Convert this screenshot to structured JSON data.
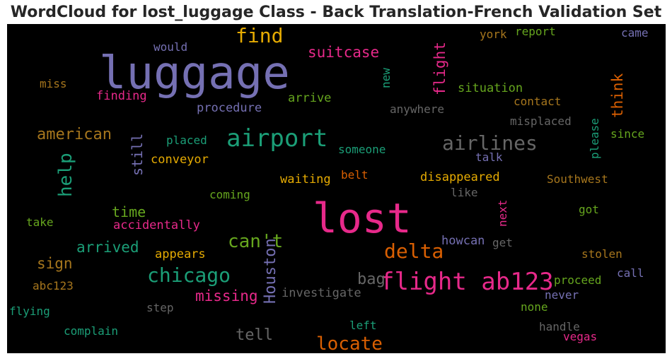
{
  "chart_data": {
    "type": "wordcloud",
    "title": "WordCloud for lost_luggage Class - Back Translation-French Validation Set",
    "background": "#000000",
    "words": [
      {
        "text": "luggage",
        "color": "#7570b3",
        "vertical": false
      },
      {
        "text": "lost",
        "color": "#e7298a",
        "vertical": false
      },
      {
        "text": "flight ab123",
        "color": "#e7298a",
        "vertical": false
      },
      {
        "text": "airport",
        "color": "#1b9e77",
        "vertical": false
      },
      {
        "text": "airlines",
        "color": "#666666",
        "vertical": false
      },
      {
        "text": "find",
        "color": "#e6ab02",
        "vertical": false
      },
      {
        "text": "delta",
        "color": "#d95f02",
        "vertical": false
      },
      {
        "text": "chicago",
        "color": "#1b9e77",
        "vertical": false
      },
      {
        "text": "can't",
        "color": "#66a61e",
        "vertical": false
      },
      {
        "text": "locate",
        "color": "#d95f02",
        "vertical": false
      },
      {
        "text": "help",
        "color": "#1b9e77",
        "vertical": true
      },
      {
        "text": "Houston",
        "color": "#7570b3",
        "vertical": true
      },
      {
        "text": "suitcase",
        "color": "#e7298a",
        "vertical": false
      },
      {
        "text": "flight",
        "color": "#e7298a",
        "vertical": true
      },
      {
        "text": "think",
        "color": "#d95f02",
        "vertical": true
      },
      {
        "text": "american",
        "color": "#a6761d",
        "vertical": false
      },
      {
        "text": "missing",
        "color": "#e7298a",
        "vertical": false
      },
      {
        "text": "bag",
        "color": "#666666",
        "vertical": false
      },
      {
        "text": "arrived",
        "color": "#1b9e77",
        "vertical": false
      },
      {
        "text": "time",
        "color": "#66a61e",
        "vertical": false
      },
      {
        "text": "sign",
        "color": "#a6761d",
        "vertical": false
      },
      {
        "text": "tell",
        "color": "#666666",
        "vertical": false
      },
      {
        "text": "still",
        "color": "#7570b3",
        "vertical": true
      },
      {
        "text": "situation",
        "color": "#66a61e",
        "vertical": false
      },
      {
        "text": "report",
        "color": "#66a61e",
        "vertical": false
      },
      {
        "text": "york",
        "color": "#a6761d",
        "vertical": false
      },
      {
        "text": "came",
        "color": "#7570b3",
        "vertical": false
      },
      {
        "text": "would",
        "color": "#7570b3",
        "vertical": false
      },
      {
        "text": "miss",
        "color": "#a6761d",
        "vertical": false
      },
      {
        "text": "finding",
        "color": "#e7298a",
        "vertical": false
      },
      {
        "text": "procedure",
        "color": "#7570b3",
        "vertical": false
      },
      {
        "text": "arrive",
        "color": "#66a61e",
        "vertical": false
      },
      {
        "text": "new",
        "color": "#1b9e77",
        "vertical": true
      },
      {
        "text": "anywhere",
        "color": "#666666",
        "vertical": false
      },
      {
        "text": "contact",
        "color": "#a6761d",
        "vertical": false
      },
      {
        "text": "misplaced",
        "color": "#666666",
        "vertical": false
      },
      {
        "text": "please",
        "color": "#1b9e77",
        "vertical": true
      },
      {
        "text": "since",
        "color": "#66a61e",
        "vertical": false
      },
      {
        "text": "placed",
        "color": "#1b9e77",
        "vertical": false
      },
      {
        "text": "someone",
        "color": "#1b9e77",
        "vertical": false
      },
      {
        "text": "talk",
        "color": "#7570b3",
        "vertical": false
      },
      {
        "text": "conveyor",
        "color": "#e6ab02",
        "vertical": false
      },
      {
        "text": "waiting",
        "color": "#e6ab02",
        "vertical": false
      },
      {
        "text": "belt",
        "color": "#d95f02",
        "vertical": false
      },
      {
        "text": "disappeared",
        "color": "#e6ab02",
        "vertical": false
      },
      {
        "text": "Southwest",
        "color": "#a6761d",
        "vertical": false
      },
      {
        "text": "coming",
        "color": "#66a61e",
        "vertical": false
      },
      {
        "text": "like",
        "color": "#666666",
        "vertical": false
      },
      {
        "text": "next",
        "color": "#e7298a",
        "vertical": true
      },
      {
        "text": "got",
        "color": "#66a61e",
        "vertical": false
      },
      {
        "text": "take",
        "color": "#66a61e",
        "vertical": false
      },
      {
        "text": "accidentally",
        "color": "#e7298a",
        "vertical": false
      },
      {
        "text": "howcan",
        "color": "#7570b3",
        "vertical": false
      },
      {
        "text": "get",
        "color": "#666666",
        "vertical": false
      },
      {
        "text": "appears",
        "color": "#e6ab02",
        "vertical": false
      },
      {
        "text": "stolen",
        "color": "#a6761d",
        "vertical": false
      },
      {
        "text": "call",
        "color": "#7570b3",
        "vertical": false
      },
      {
        "text": "abc123",
        "color": "#a6761d",
        "vertical": false
      },
      {
        "text": "investigate",
        "color": "#666666",
        "vertical": false
      },
      {
        "text": "proceed",
        "color": "#66a61e",
        "vertical": false
      },
      {
        "text": "never",
        "color": "#7570b3",
        "vertical": false
      },
      {
        "text": "flying",
        "color": "#1b9e77",
        "vertical": false
      },
      {
        "text": "step",
        "color": "#666666",
        "vertical": false
      },
      {
        "text": "none",
        "color": "#66a61e",
        "vertical": false
      },
      {
        "text": "complain",
        "color": "#1b9e77",
        "vertical": false
      },
      {
        "text": "left",
        "color": "#1b9e77",
        "vertical": false
      },
      {
        "text": "handle",
        "color": "#666666",
        "vertical": false
      },
      {
        "text": "vegas",
        "color": "#e7298a",
        "vertical": false
      }
    ]
  }
}
